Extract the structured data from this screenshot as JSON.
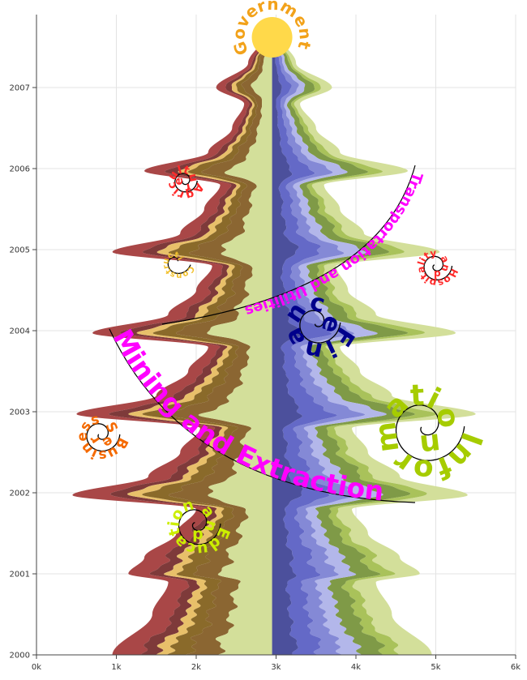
{
  "chart_data": {
    "type": "area",
    "subtype": "streamgraph (mirrored, stacked, vertical)",
    "x_axis": {
      "ticks": [
        {
          "value": 0,
          "label": "0k"
        },
        {
          "value": 1000,
          "label": "1k"
        },
        {
          "value": 2000,
          "label": "2k"
        },
        {
          "value": 3000,
          "label": "3k"
        },
        {
          "value": 4000,
          "label": "4k"
        },
        {
          "value": 5000,
          "label": "5k"
        },
        {
          "value": 6000,
          "label": "6k"
        }
      ],
      "range": [
        0,
        6000
      ]
    },
    "y_axis": {
      "ticks": [
        {
          "value": 2000,
          "label": "2000"
        },
        {
          "value": 2001,
          "label": "2001"
        },
        {
          "value": 2002,
          "label": "2002"
        },
        {
          "value": 2003,
          "label": "2003"
        },
        {
          "value": 2004,
          "label": "2004"
        },
        {
          "value": 2005,
          "label": "2005"
        },
        {
          "value": 2006,
          "label": "2006"
        },
        {
          "value": 2007,
          "label": "2007"
        }
      ],
      "range": [
        2000,
        2008
      ]
    },
    "grid": true,
    "center_value": 2950,
    "widths": {
      "years": [
        2000,
        2000.5,
        2000.9,
        2001.0,
        2001.2,
        2001.5,
        2001.8,
        2001.97,
        2002.2,
        2002.5,
        2002.8,
        2002.97,
        2003.2,
        2003.5,
        2003.8,
        2003.97,
        2004.2,
        2004.5,
        2004.8,
        2004.97,
        2005.2,
        2005.5,
        2005.8,
        2005.97,
        2006.2,
        2006.5,
        2006.8,
        2007.0,
        2007.3,
        2007.7
      ],
      "left": [
        2000,
        1500,
        1300,
        1800,
        1600,
        1200,
        950,
        2500,
        1550,
        1150,
        900,
        2450,
        1450,
        1050,
        800,
        2250,
        1300,
        950,
        750,
        2000,
        1150,
        850,
        650,
        1600,
        800,
        500,
        350,
        700,
        300,
        40
      ],
      "right": [
        2000,
        1500,
        1300,
        1850,
        1600,
        1200,
        1000,
        2450,
        1600,
        1200,
        1000,
        2550,
        1500,
        1100,
        850,
        2300,
        1300,
        950,
        800,
        2100,
        1150,
        850,
        650,
        1700,
        850,
        550,
        350,
        750,
        300,
        40
      ]
    },
    "peak_labels": [
      {
        "year": 2000,
        "x_left": 1000,
        "x_right": 4900
      },
      {
        "year": 2001.0,
        "x_left": 1150,
        "x_right": 4750
      },
      {
        "year": 2001.97,
        "x_left": 500,
        "x_right": 5400
      },
      {
        "year": 2002.97,
        "x_left": 450,
        "x_right": 5500
      },
      {
        "year": 2003.97,
        "x_left": 550,
        "x_right": 5350
      },
      {
        "year": 2004.97,
        "x_left": 700,
        "x_right": 5200
      },
      {
        "year": 2005.97,
        "x_left": 950,
        "x_right": 5000
      }
    ],
    "series": [
      {
        "name": "Mining and Extraction",
        "side": "left",
        "share": 0.18,
        "color": "#a94747"
      },
      {
        "name": "",
        "side": "left",
        "share": 0.1,
        "color": "#7e3a3a"
      },
      {
        "name": "Construction",
        "side": "left",
        "share": 0.08,
        "color": "#e8c06a"
      },
      {
        "name": "",
        "side": "left",
        "share": 0.12,
        "color": "#8a6a2a"
      },
      {
        "name": "",
        "side": "left",
        "share": 0.18,
        "color": "#8b6632"
      },
      {
        "name": "Government",
        "side": "left",
        "share": 0.34,
        "color": "#d3df9a"
      },
      {
        "name": "Information",
        "side": "right",
        "share": 0.2,
        "color": "#d3df9a"
      },
      {
        "name": "",
        "side": "right",
        "share": 0.1,
        "color": "#a9c25a"
      },
      {
        "name": "",
        "side": "right",
        "share": 0.15,
        "color": "#7f9a47"
      },
      {
        "name": "Finance",
        "side": "right",
        "share": 0.12,
        "color": "#b3b7ea"
      },
      {
        "name": "",
        "side": "right",
        "share": 0.13,
        "color": "#8489d6"
      },
      {
        "name": "Transportation and Utilities",
        "side": "right",
        "share": 0.15,
        "color": "#6469c7"
      },
      {
        "name": "",
        "side": "right",
        "share": 0.15,
        "color": "#4c509c"
      }
    ],
    "annotations": [
      {
        "text": "Government",
        "color": "#f2a21a",
        "year": 2007.62,
        "x": 2950,
        "style": "sun-ring"
      },
      {
        "text": "Mining and Extraction",
        "color": "#ff00ff",
        "year": 2003.3,
        "x": 2000,
        "style": "arc"
      },
      {
        "text": "Transportation and Utilities",
        "color": "#ff00ff",
        "year": 2004.6,
        "x": 3600,
        "style": "arc"
      },
      {
        "text": "Finance",
        "color": "#00008b",
        "year": 2004.1,
        "x": 3500,
        "style": "spiral"
      },
      {
        "text": "Information",
        "color": "#a6cc00",
        "year": 2002.82,
        "x": 4850,
        "style": "spiral"
      },
      {
        "text": "Agriculture",
        "color": "#ff2a2a",
        "year": 2005.85,
        "x": 1850,
        "style": "spiral"
      },
      {
        "text": "Hospitality and Leisure",
        "color": "#ff2a2a",
        "year": 2004.8,
        "x": 5000,
        "style": "spiral"
      },
      {
        "text": "Business Services",
        "color": "#f56a00",
        "year": 2002.72,
        "x": 800,
        "style": "spiral"
      },
      {
        "text": "Education and Health",
        "color": "#ccee00",
        "year": 2001.62,
        "x": 2000,
        "style": "spiral"
      },
      {
        "text": "Construction",
        "color": "#f2c12e",
        "year": 2004.85,
        "x": 1750,
        "style": "spiral"
      }
    ],
    "sun_color": "#ffd94a"
  }
}
